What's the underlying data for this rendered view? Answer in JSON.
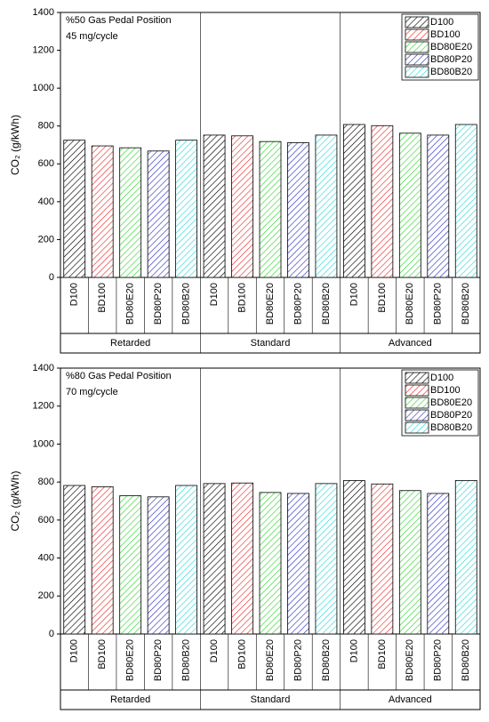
{
  "chart_data": [
    {
      "type": "bar",
      "annotations": [
        "%50 Gas Pedal Position",
        "45 mg/cycle"
      ],
      "ylabel": "CO₂ (g/kWh)",
      "categories": [
        "Retarded",
        "Standard",
        "Advanced"
      ],
      "series": [
        {
          "name": "D100",
          "color": "#000000",
          "values": [
            725,
            752,
            808
          ]
        },
        {
          "name": "BD100",
          "color": "#e83030",
          "values": [
            695,
            748,
            802
          ]
        },
        {
          "name": "BD80E20",
          "color": "#30d830",
          "values": [
            685,
            718,
            762
          ]
        },
        {
          "name": "BD80P20",
          "color": "#3434c0",
          "values": [
            668,
            712,
            752
          ]
        },
        {
          "name": "BD80B20",
          "color": "#30d8d8",
          "values": [
            725,
            752,
            808
          ]
        }
      ],
      "ylim": [
        0,
        1400
      ],
      "yticks": [
        0,
        200,
        400,
        600,
        800,
        1000,
        1200,
        1400
      ],
      "legend": "upper right"
    },
    {
      "type": "bar",
      "annotations": [
        "%80 Gas Pedal Position",
        "70 mg/cycle"
      ],
      "ylabel": "CO₂ (g/kWh)",
      "categories": [
        "Retarded",
        "Standard",
        "Advanced"
      ],
      "series": [
        {
          "name": "D100",
          "color": "#000000",
          "values": [
            782,
            792,
            808
          ]
        },
        {
          "name": "BD100",
          "color": "#e83030",
          "values": [
            775,
            795,
            790
          ]
        },
        {
          "name": "BD80E20",
          "color": "#30d830",
          "values": [
            728,
            745,
            755
          ]
        },
        {
          "name": "BD80P20",
          "color": "#3434c0",
          "values": [
            722,
            740,
            740
          ]
        },
        {
          "name": "BD80B20",
          "color": "#30d8d8",
          "values": [
            782,
            792,
            808
          ]
        }
      ],
      "ylim": [
        0,
        1400
      ],
      "yticks": [
        0,
        200,
        400,
        600,
        800,
        1000,
        1200,
        1400
      ],
      "legend": "upper right"
    }
  ]
}
